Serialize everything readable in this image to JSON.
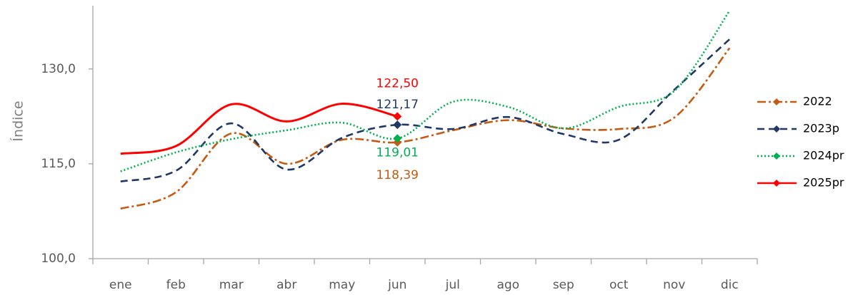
{
  "chart_data": {
    "type": "line",
    "y_label": "Índice",
    "categories": [
      "ene",
      "feb",
      "mar",
      "abr",
      "may",
      "jun",
      "jul",
      "ago",
      "sep",
      "oct",
      "nov",
      "dic"
    ],
    "ylim": [
      100,
      140
    ],
    "yticks": [
      {
        "value": 100,
        "label": "100,0"
      },
      {
        "value": 115,
        "label": "115,0"
      },
      {
        "value": 130,
        "label": "130,0"
      }
    ],
    "grid": false,
    "legend": "right",
    "series": [
      {
        "name": "2022",
        "color": "#c55a11",
        "values": [
          107.9,
          110.5,
          119.8,
          115.0,
          118.8,
          118.39,
          120.3,
          121.9,
          120.6,
          120.5,
          122.3,
          133.3
        ],
        "value_labels": [
          null,
          null,
          null,
          null,
          null,
          "118,39",
          null,
          null,
          null,
          null,
          null,
          null
        ]
      },
      {
        "name": "2023p",
        "color": "#203864",
        "values": [
          112.2,
          113.9,
          121.4,
          114.1,
          119.1,
          121.17,
          120.5,
          122.4,
          119.7,
          118.8,
          126.7,
          134.7
        ],
        "value_labels": [
          null,
          null,
          null,
          null,
          null,
          "121,17",
          null,
          null,
          null,
          null,
          null,
          null
        ]
      },
      {
        "name": "2024pr",
        "color": "#00b050",
        "values": [
          113.8,
          116.8,
          118.9,
          120.3,
          121.5,
          119.01,
          124.8,
          124.0,
          120.6,
          124.0,
          126.5,
          139.2
        ],
        "value_labels": [
          null,
          null,
          null,
          null,
          null,
          "119,01",
          null,
          null,
          null,
          null,
          null,
          null
        ]
      },
      {
        "name": "2025pr",
        "color": "#ff0000",
        "values": [
          116.6,
          117.8,
          124.4,
          121.7,
          124.5,
          122.5,
          null,
          null,
          null,
          null,
          null,
          null
        ],
        "value_labels": [
          null,
          null,
          null,
          null,
          null,
          "122,50",
          null,
          null,
          null,
          null,
          null,
          null
        ]
      }
    ]
  }
}
